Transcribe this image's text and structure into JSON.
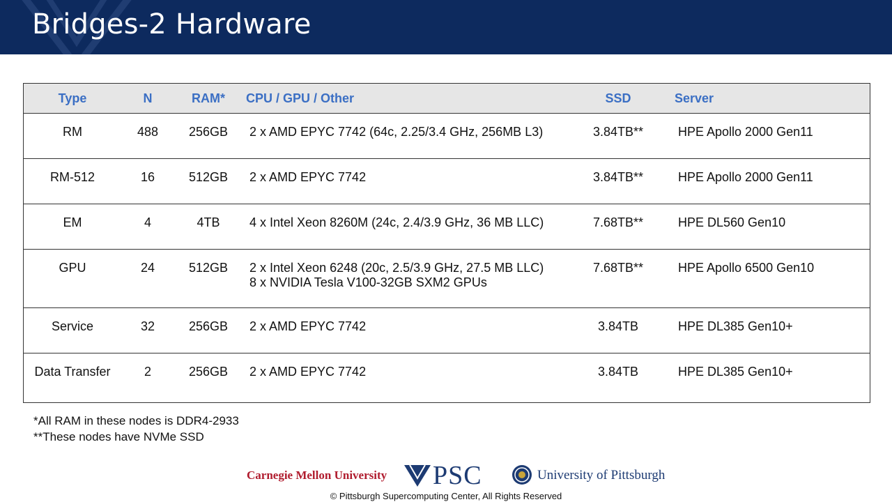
{
  "slide": {
    "title": "Bridges-2 Hardware"
  },
  "table": {
    "headers": [
      "Type",
      "N",
      "RAM*",
      "CPU / GPU / Other",
      "SSD",
      "Server"
    ],
    "rows": [
      {
        "type": "RM",
        "n": "488",
        "ram": "256GB",
        "cpu": "2 x AMD EPYC 7742 (64c, 2.25/3.4 GHz, 256MB L3)",
        "cpu2": "",
        "ssd": "3.84TB**",
        "server": "HPE Apollo 2000 Gen11"
      },
      {
        "type": "RM-512",
        "n": "16",
        "ram": "512GB",
        "cpu": "2 x AMD EPYC 7742",
        "cpu2": "",
        "ssd": "3.84TB**",
        "server": "HPE Apollo 2000 Gen11"
      },
      {
        "type": "EM",
        "n": "4",
        "ram": "4TB",
        "cpu": "4 x Intel Xeon 8260M (24c, 2.4/3.9 GHz, 36 MB LLC)",
        "cpu2": "",
        "ssd": "7.68TB**",
        "server": "HPE DL560 Gen10"
      },
      {
        "type": "GPU",
        "n": "24",
        "ram": "512GB",
        "cpu": "2 x Intel Xeon 6248 (20c, 2.5/3.9 GHz, 27.5 MB LLC)",
        "cpu2": "8 x NVIDIA Tesla V100-32GB SXM2 GPUs",
        "ssd": "7.68TB**",
        "server": "HPE Apollo 6500 Gen10"
      },
      {
        "type": "Service",
        "n": "32",
        "ram": "256GB",
        "cpu": "2 x AMD EPYC 7742",
        "cpu2": "",
        "ssd": "3.84TB",
        "server": "HPE DL385 Gen10+"
      },
      {
        "type": "Data Transfer",
        "n": "2",
        "ram": "256GB",
        "cpu": "2 x AMD EPYC 7742",
        "cpu2": "",
        "ssd": "3.84TB",
        "server": "HPE DL385 Gen10+"
      }
    ]
  },
  "notes": {
    "ram_note": "*All RAM in these nodes is DDR4-2933",
    "ssd_note": "**These nodes have NVMe SSD"
  },
  "footer": {
    "cmu": "Carnegie Mellon University",
    "psc": "PSC",
    "pitt": "University of Pittsburgh",
    "copyright": "© Pittsburgh Supercomputing Center, All Rights Reserved"
  }
}
